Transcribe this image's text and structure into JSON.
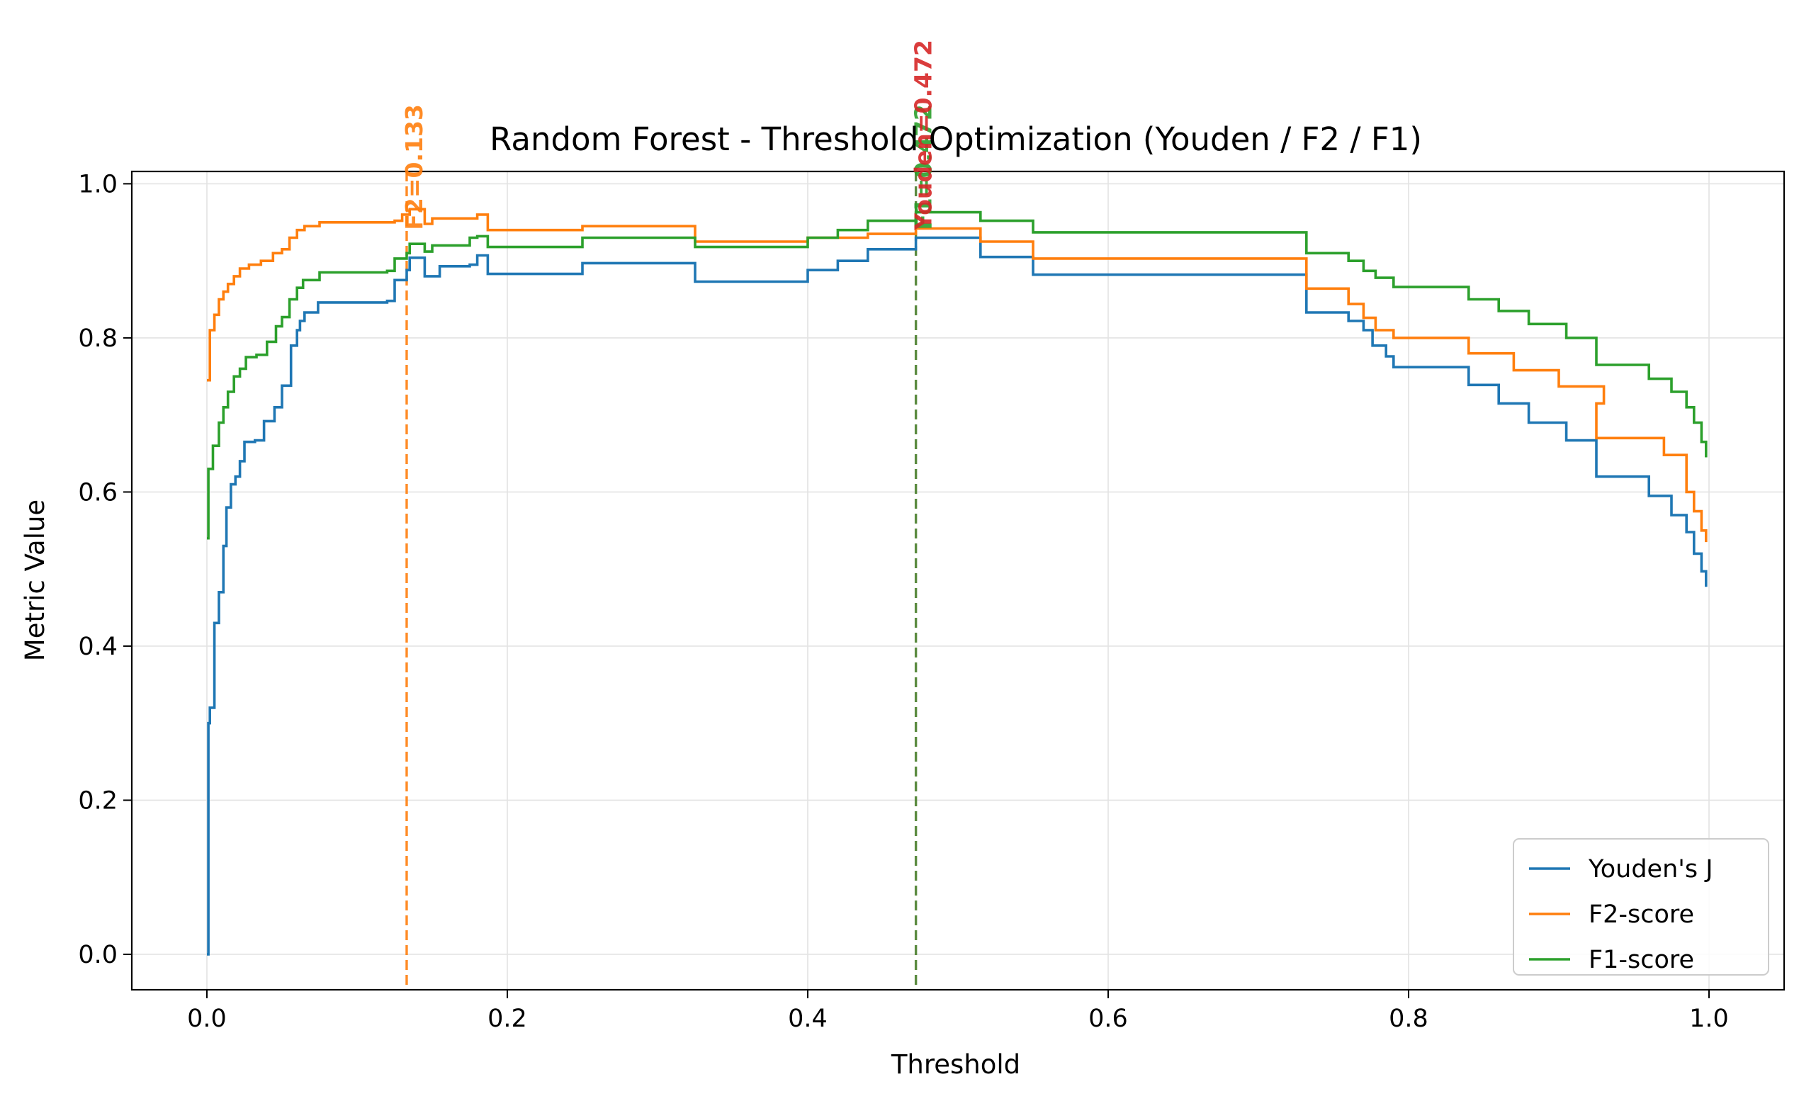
{
  "chart_data": {
    "type": "line",
    "title": "Random Forest - Threshold Optimization (Youden / F2 / F1)",
    "xlabel": "Threshold",
    "ylabel": "Metric Value",
    "xlim": [
      -0.05,
      1.05
    ],
    "ylim": [
      -0.046,
      1.016
    ],
    "x_ticks": [
      0.0,
      0.2,
      0.4,
      0.6,
      0.8,
      1.0
    ],
    "x_tick_labels": [
      "0.0",
      "0.2",
      "0.4",
      "0.6",
      "0.8",
      "1.0"
    ],
    "y_ticks": [
      0.0,
      0.2,
      0.4,
      0.6,
      0.8,
      1.0
    ],
    "y_tick_labels": [
      "0.0",
      "0.2",
      "0.4",
      "0.6",
      "0.8",
      "1.0"
    ],
    "grid": true,
    "legend_position": "lower-right",
    "series": [
      {
        "name": "Youden's J",
        "color": "#1f77b4",
        "step": true,
        "points": [
          [
            0.0,
            0.0
          ],
          [
            0.001,
            0.3
          ],
          [
            0.002,
            0.32
          ],
          [
            0.005,
            0.43
          ],
          [
            0.008,
            0.47
          ],
          [
            0.011,
            0.53
          ],
          [
            0.013,
            0.58
          ],
          [
            0.016,
            0.61
          ],
          [
            0.019,
            0.62
          ],
          [
            0.022,
            0.64
          ],
          [
            0.025,
            0.665
          ],
          [
            0.032,
            0.667
          ],
          [
            0.038,
            0.692
          ],
          [
            0.045,
            0.71
          ],
          [
            0.05,
            0.738
          ],
          [
            0.05,
            0.738
          ],
          [
            0.056,
            0.79
          ],
          [
            0.06,
            0.81
          ],
          [
            0.062,
            0.822
          ],
          [
            0.065,
            0.833
          ],
          [
            0.074,
            0.846
          ],
          [
            0.12,
            0.848
          ],
          [
            0.125,
            0.875
          ],
          [
            0.133,
            0.888
          ],
          [
            0.135,
            0.904
          ],
          [
            0.145,
            0.88
          ],
          [
            0.155,
            0.893
          ],
          [
            0.175,
            0.895
          ],
          [
            0.18,
            0.907
          ],
          [
            0.187,
            0.883
          ],
          [
            0.25,
            0.897
          ],
          [
            0.325,
            0.873
          ],
          [
            0.4,
            0.888
          ],
          [
            0.42,
            0.9
          ],
          [
            0.44,
            0.915
          ],
          [
            0.472,
            0.93
          ],
          [
            0.515,
            0.905
          ],
          [
            0.55,
            0.882
          ],
          [
            0.73,
            0.882
          ],
          [
            0.732,
            0.833
          ],
          [
            0.76,
            0.822
          ],
          [
            0.77,
            0.81
          ],
          [
            0.776,
            0.79
          ],
          [
            0.785,
            0.776
          ],
          [
            0.79,
            0.762
          ],
          [
            0.83,
            0.762
          ],
          [
            0.84,
            0.739
          ],
          [
            0.86,
            0.715
          ],
          [
            0.88,
            0.69
          ],
          [
            0.905,
            0.667
          ],
          [
            0.925,
            0.62
          ],
          [
            0.96,
            0.595
          ],
          [
            0.975,
            0.57
          ],
          [
            0.985,
            0.548
          ],
          [
            0.99,
            0.52
          ],
          [
            0.995,
            0.497
          ],
          [
            0.998,
            0.477
          ]
        ]
      },
      {
        "name": "F2-score",
        "color": "#ff7f0e",
        "step": true,
        "points": [
          [
            0.0,
            0.745
          ],
          [
            0.002,
            0.81
          ],
          [
            0.005,
            0.83
          ],
          [
            0.008,
            0.85
          ],
          [
            0.011,
            0.86
          ],
          [
            0.014,
            0.87
          ],
          [
            0.018,
            0.88
          ],
          [
            0.022,
            0.89
          ],
          [
            0.028,
            0.895
          ],
          [
            0.036,
            0.9
          ],
          [
            0.044,
            0.91
          ],
          [
            0.05,
            0.915
          ],
          [
            0.055,
            0.93
          ],
          [
            0.06,
            0.94
          ],
          [
            0.065,
            0.945
          ],
          [
            0.075,
            0.95
          ],
          [
            0.125,
            0.952
          ],
          [
            0.13,
            0.96
          ],
          [
            0.135,
            0.967
          ],
          [
            0.145,
            0.948
          ],
          [
            0.15,
            0.955
          ],
          [
            0.18,
            0.96
          ],
          [
            0.187,
            0.94
          ],
          [
            0.25,
            0.945
          ],
          [
            0.325,
            0.925
          ],
          [
            0.4,
            0.93
          ],
          [
            0.44,
            0.935
          ],
          [
            0.472,
            0.942
          ],
          [
            0.515,
            0.925
          ],
          [
            0.55,
            0.903
          ],
          [
            0.73,
            0.903
          ],
          [
            0.732,
            0.864
          ],
          [
            0.76,
            0.844
          ],
          [
            0.77,
            0.826
          ],
          [
            0.778,
            0.81
          ],
          [
            0.79,
            0.8
          ],
          [
            0.84,
            0.78
          ],
          [
            0.87,
            0.758
          ],
          [
            0.9,
            0.737
          ],
          [
            0.93,
            0.715
          ],
          [
            0.925,
            0.67
          ],
          [
            0.95,
            0.67
          ],
          [
            0.97,
            0.648
          ],
          [
            0.985,
            0.6
          ],
          [
            0.99,
            0.575
          ],
          [
            0.995,
            0.55
          ],
          [
            0.998,
            0.535
          ]
        ]
      },
      {
        "name": "F1-score",
        "color": "#2ca02c",
        "step": true,
        "points": [
          [
            0.0,
            0.54
          ],
          [
            0.001,
            0.63
          ],
          [
            0.004,
            0.66
          ],
          [
            0.008,
            0.69
          ],
          [
            0.011,
            0.71
          ],
          [
            0.014,
            0.73
          ],
          [
            0.018,
            0.75
          ],
          [
            0.022,
            0.76
          ],
          [
            0.026,
            0.775
          ],
          [
            0.033,
            0.778
          ],
          [
            0.04,
            0.795
          ],
          [
            0.046,
            0.815
          ],
          [
            0.05,
            0.827
          ],
          [
            0.055,
            0.85
          ],
          [
            0.06,
            0.865
          ],
          [
            0.064,
            0.875
          ],
          [
            0.075,
            0.885
          ],
          [
            0.12,
            0.887
          ],
          [
            0.125,
            0.903
          ],
          [
            0.133,
            0.91
          ],
          [
            0.135,
            0.922
          ],
          [
            0.145,
            0.912
          ],
          [
            0.15,
            0.92
          ],
          [
            0.175,
            0.93
          ],
          [
            0.18,
            0.932
          ],
          [
            0.187,
            0.918
          ],
          [
            0.25,
            0.93
          ],
          [
            0.325,
            0.918
          ],
          [
            0.4,
            0.93
          ],
          [
            0.42,
            0.94
          ],
          [
            0.44,
            0.952
          ],
          [
            0.472,
            0.963
          ],
          [
            0.515,
            0.952
          ],
          [
            0.55,
            0.937
          ],
          [
            0.73,
            0.937
          ],
          [
            0.732,
            0.91
          ],
          [
            0.76,
            0.9
          ],
          [
            0.77,
            0.887
          ],
          [
            0.778,
            0.878
          ],
          [
            0.79,
            0.866
          ],
          [
            0.83,
            0.866
          ],
          [
            0.84,
            0.85
          ],
          [
            0.86,
            0.835
          ],
          [
            0.88,
            0.818
          ],
          [
            0.905,
            0.8
          ],
          [
            0.925,
            0.765
          ],
          [
            0.96,
            0.747
          ],
          [
            0.975,
            0.73
          ],
          [
            0.985,
            0.71
          ],
          [
            0.99,
            0.69
          ],
          [
            0.995,
            0.665
          ],
          [
            0.998,
            0.645
          ]
        ]
      }
    ],
    "annotations": [
      {
        "label": "F2=0.133",
        "x": 0.133,
        "color": "#ff7f0e"
      },
      {
        "label": "F1=0.472",
        "x": 0.472,
        "color": "#2ca02c"
      },
      {
        "label": "Youden=0.472",
        "x": 0.472,
        "color": "#d62728"
      }
    ]
  }
}
